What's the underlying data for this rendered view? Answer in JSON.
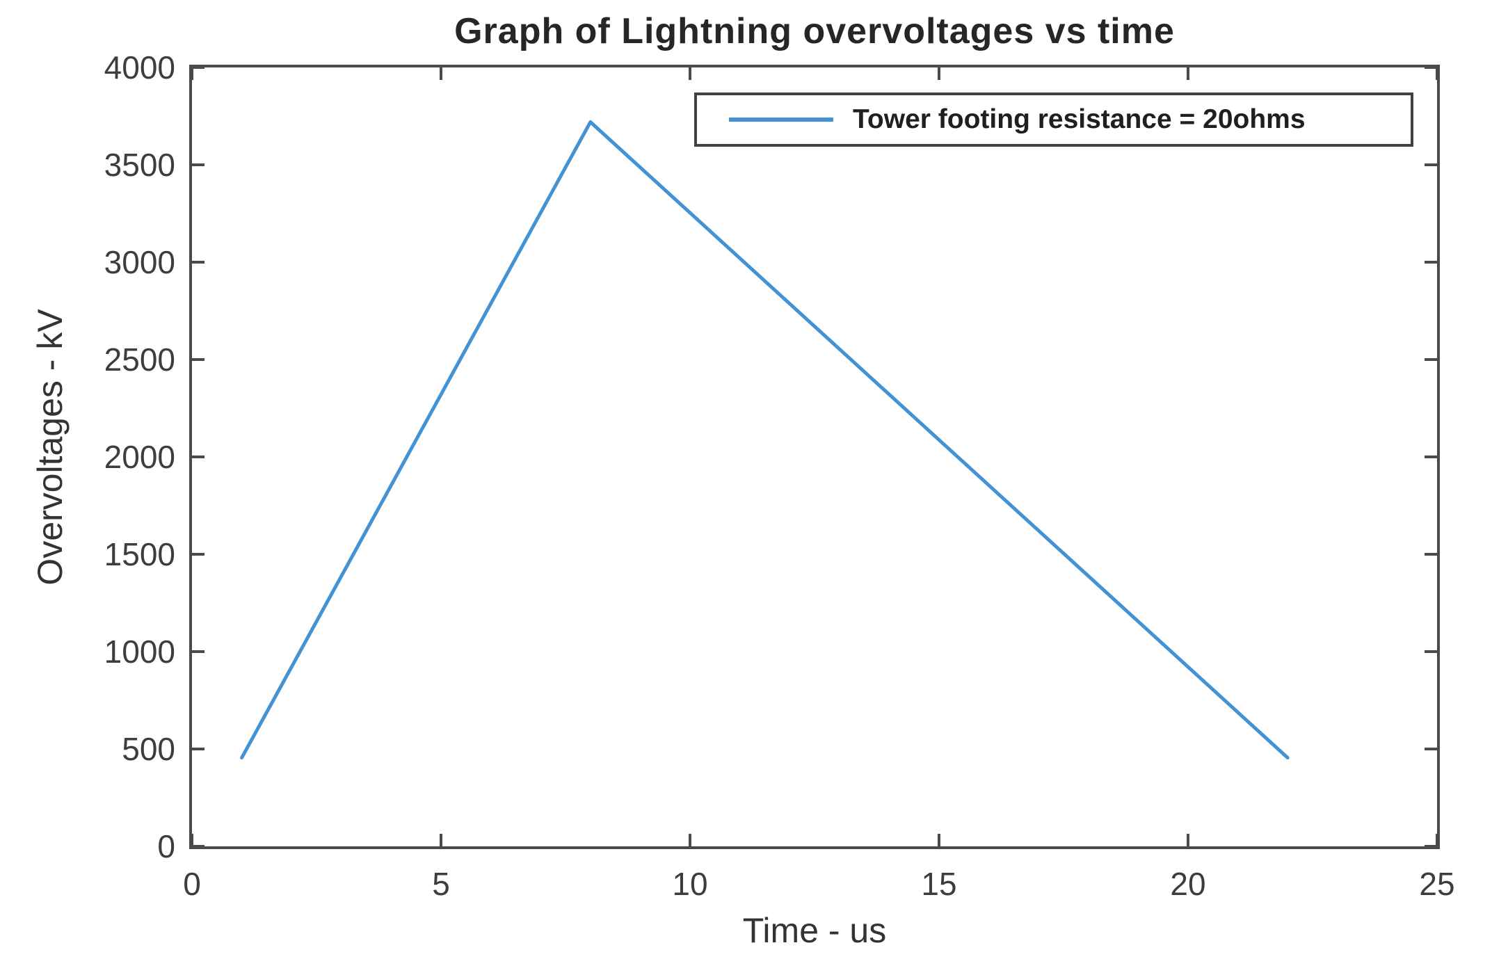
{
  "figure": {
    "background": "#ffffff"
  },
  "chart_data": {
    "type": "line",
    "title": "Graph of Lightning overvoltages vs time",
    "xlabel": "Time - us",
    "ylabel": "Overvoltages - kV",
    "xlim": [
      0,
      25
    ],
    "ylim": [
      0,
      4000
    ],
    "x_ticks": [
      0,
      5,
      10,
      15,
      20,
      25
    ],
    "y_ticks": [
      0,
      500,
      1000,
      1500,
      2000,
      2500,
      3000,
      3500,
      4000
    ],
    "grid": false,
    "legend_position": "top-right",
    "series": [
      {
        "name": "Tower footing resistance = 20ohms",
        "color": "#4292d4",
        "points": [
          [
            1,
            455
          ],
          [
            8,
            3720
          ],
          [
            22,
            455
          ]
        ]
      }
    ]
  },
  "colors": {
    "axis": "#4a4a4a",
    "tick_label": "#3d3d3d",
    "title": "#262626",
    "series_blue": "#4292d4",
    "legend_border": "#424242"
  }
}
